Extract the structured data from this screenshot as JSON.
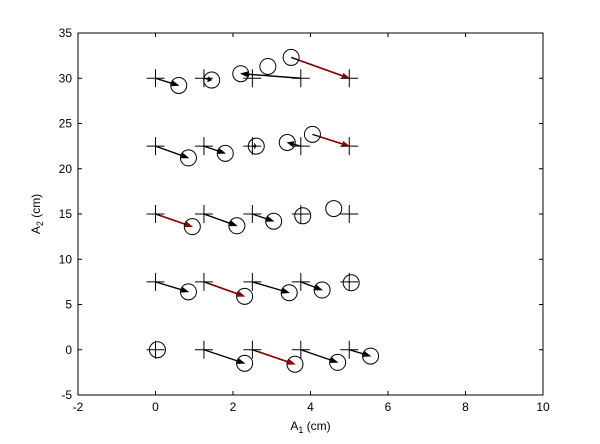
{
  "chart_data": {
    "type": "scatter",
    "xlabel": "A",
    "xlabel_sub": "1",
    "xlabel_unit": " (cm)",
    "ylabel": "A",
    "ylabel_sub": "2",
    "ylabel_unit": " (cm)",
    "xlim": [
      -2,
      10
    ],
    "ylim": [
      -5,
      35
    ],
    "xticks": [
      -2,
      0,
      2,
      4,
      6,
      8,
      10
    ],
    "yticks": [
      -5,
      0,
      5,
      10,
      15,
      20,
      25,
      30,
      35
    ],
    "grid": false,
    "legend": "none",
    "series": [
      {
        "marker": "plus",
        "color": "#000000",
        "points": [
          [
            0,
            30
          ],
          [
            1.25,
            30
          ],
          [
            2.5,
            30
          ],
          [
            3.75,
            30
          ],
          [
            5,
            30
          ],
          [
            0,
            22.5
          ],
          [
            1.25,
            22.5
          ],
          [
            2.5,
            22.5
          ],
          [
            3.75,
            22.5
          ],
          [
            5,
            22.5
          ],
          [
            0,
            15
          ],
          [
            1.25,
            15
          ],
          [
            2.5,
            15
          ],
          [
            3.75,
            15
          ],
          [
            5,
            15
          ],
          [
            0,
            7.5
          ],
          [
            1.25,
            7.5
          ],
          [
            2.5,
            7.5
          ],
          [
            3.75,
            7.5
          ],
          [
            5,
            7.5
          ],
          [
            0,
            0
          ],
          [
            1.25,
            0
          ],
          [
            2.5,
            0
          ],
          [
            3.75,
            0
          ],
          [
            5,
            0
          ]
        ]
      },
      {
        "marker": "circle",
        "color": "#000000",
        "points": [
          [
            0.6,
            29.2
          ],
          [
            1.45,
            29.8
          ],
          [
            2.2,
            30.5
          ],
          [
            2.9,
            31.3
          ],
          [
            3.5,
            32.3
          ],
          [
            0.85,
            21.2
          ],
          [
            1.8,
            21.7
          ],
          [
            2.6,
            22.5
          ],
          [
            3.4,
            22.9
          ],
          [
            4.05,
            23.8
          ],
          [
            0.95,
            13.6
          ],
          [
            2.1,
            13.7
          ],
          [
            3.05,
            14.2
          ],
          [
            3.8,
            14.8
          ],
          [
            4.6,
            15.6
          ],
          [
            0.85,
            6.4
          ],
          [
            2.3,
            5.9
          ],
          [
            3.45,
            6.3
          ],
          [
            4.3,
            6.6
          ],
          [
            5.05,
            7.4
          ],
          [
            0.05,
            0
          ],
          [
            2.3,
            -1.5
          ],
          [
            3.6,
            -1.6
          ],
          [
            4.7,
            -1.4
          ],
          [
            5.55,
            -0.7
          ]
        ]
      }
    ],
    "arrows": [
      {
        "from": [
          0,
          30
        ],
        "to": [
          0.6,
          29.2
        ],
        "color": "#000000"
      },
      {
        "from": [
          1.25,
          30
        ],
        "to": [
          1.45,
          29.8
        ],
        "color": "#000000"
      },
      {
        "from": [
          3.75,
          30
        ],
        "to": [
          2.2,
          30.5
        ],
        "color": "#000000"
      },
      {
        "from": [
          3.5,
          32.3
        ],
        "to": [
          5,
          30
        ],
        "color": "#8b0000"
      },
      {
        "from": [
          0,
          22.5
        ],
        "to": [
          0.85,
          21.2
        ],
        "color": "#000000"
      },
      {
        "from": [
          1.25,
          22.5
        ],
        "to": [
          1.8,
          21.7
        ],
        "color": "#000000"
      },
      {
        "from": [
          2.5,
          22.5
        ],
        "to": [
          2.6,
          22.5
        ],
        "color": "#000000"
      },
      {
        "from": [
          3.75,
          22.5
        ],
        "to": [
          3.4,
          22.9
        ],
        "color": "#000000"
      },
      {
        "from": [
          4.05,
          23.8
        ],
        "to": [
          5,
          22.5
        ],
        "color": "#8b0000"
      },
      {
        "from": [
          0,
          15
        ],
        "to": [
          0.95,
          13.6
        ],
        "color": "#8b0000"
      },
      {
        "from": [
          1.25,
          15
        ],
        "to": [
          2.1,
          13.7
        ],
        "color": "#000000"
      },
      {
        "from": [
          2.5,
          15
        ],
        "to": [
          3.05,
          14.2
        ],
        "color": "#000000"
      },
      {
        "from": [
          0,
          7.5
        ],
        "to": [
          0.85,
          6.4
        ],
        "color": "#000000"
      },
      {
        "from": [
          1.25,
          7.5
        ],
        "to": [
          2.3,
          5.9
        ],
        "color": "#8b0000"
      },
      {
        "from": [
          2.5,
          7.5
        ],
        "to": [
          3.45,
          6.3
        ],
        "color": "#000000"
      },
      {
        "from": [
          3.75,
          7.5
        ],
        "to": [
          4.3,
          6.6
        ],
        "color": "#000000"
      },
      {
        "from": [
          1.25,
          0
        ],
        "to": [
          2.3,
          -1.5
        ],
        "color": "#000000"
      },
      {
        "from": [
          2.5,
          0
        ],
        "to": [
          3.6,
          -1.6
        ],
        "color": "#8b0000"
      },
      {
        "from": [
          3.75,
          0
        ],
        "to": [
          4.7,
          -1.4
        ],
        "color": "#000000"
      },
      {
        "from": [
          5,
          0
        ],
        "to": [
          5.55,
          -0.7
        ],
        "color": "#000000"
      }
    ]
  }
}
